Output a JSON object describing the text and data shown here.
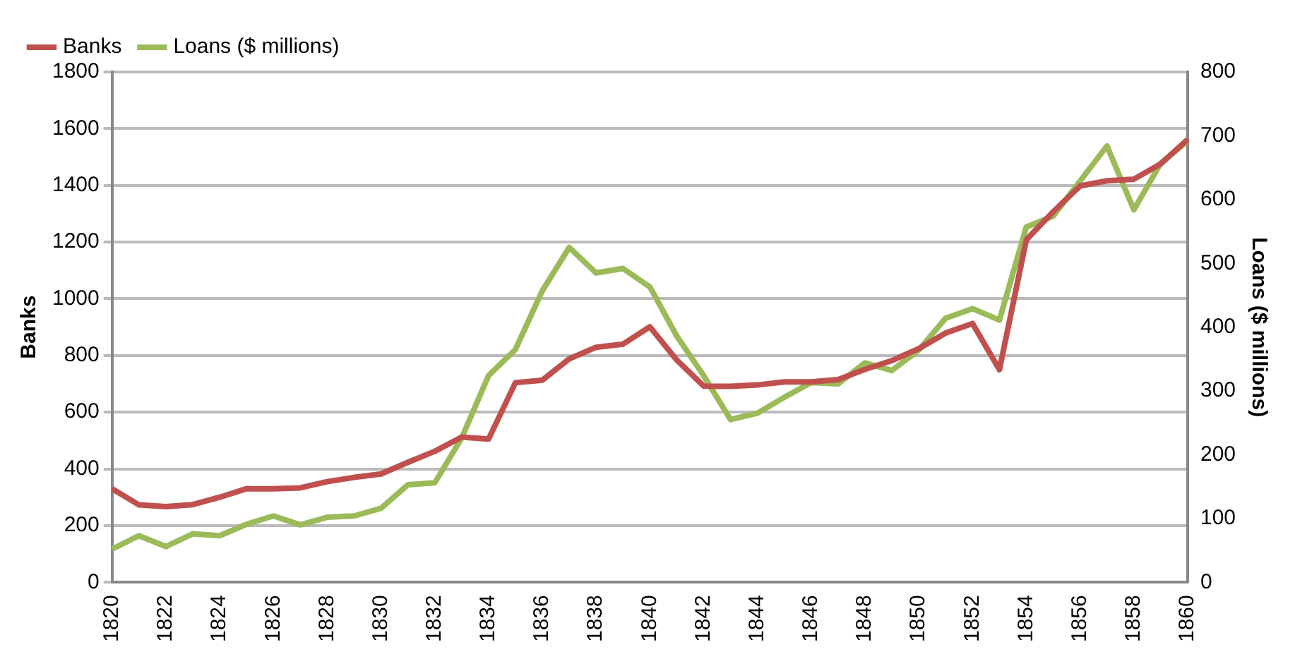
{
  "chart_data": {
    "type": "line",
    "categories": [
      "1820",
      null,
      "1822",
      null,
      "1824",
      null,
      "1826",
      null,
      "1828",
      null,
      "1830",
      null,
      "1832",
      null,
      "1834",
      null,
      "1836",
      null,
      "1838",
      null,
      "1840",
      null,
      "1842",
      null,
      "1844",
      null,
      "1846",
      null,
      "1848",
      null,
      "1850",
      null,
      "1852",
      null,
      "1854",
      null,
      "1856",
      null,
      "1858",
      null,
      "1860"
    ],
    "series": [
      {
        "name": "Banks",
        "color": "#c0504d",
        "values": [
          330,
          273,
          267,
          274,
          300,
          330,
          330,
          333,
          355,
          370,
          382,
          423,
          462,
          512,
          505,
          704,
          713,
          788,
          829,
          840,
          901,
          784,
          692,
          691,
          696,
          707,
          707,
          715,
          751,
          782,
          824,
          879,
          913,
          750,
          1208,
          1307,
          1398,
          1416,
          1422,
          1476,
          1562
        ]
      },
      {
        "name": "Loans ($ millions)",
        "color": "#9bbb59",
        "axis": "y2",
        "values": [
          52,
          73,
          56,
          76,
          73,
          91,
          104,
          90,
          102,
          104,
          116,
          153,
          156,
          226,
          324,
          365,
          457,
          525,
          485,
          492,
          463,
          386,
          324,
          255,
          265,
          290,
          313,
          311,
          344,
          332,
          364,
          414,
          429,
          411,
          557,
          574,
          629,
          684,
          584,
          657,
          692
        ]
      }
    ],
    "ylabel": "Banks",
    "y2label": "Loans ($ millions)",
    "ylim": [
      0,
      1800
    ],
    "yticks": [
      0,
      200,
      400,
      600,
      800,
      1000,
      1200,
      1400,
      1600,
      1800
    ],
    "y2lim": [
      0,
      800
    ],
    "y2ticks": [
      0,
      100,
      200,
      300,
      400,
      500,
      600,
      700,
      800
    ],
    "grid": "y",
    "legend": "top left",
    "marker": "none",
    "line_style": "solid"
  }
}
